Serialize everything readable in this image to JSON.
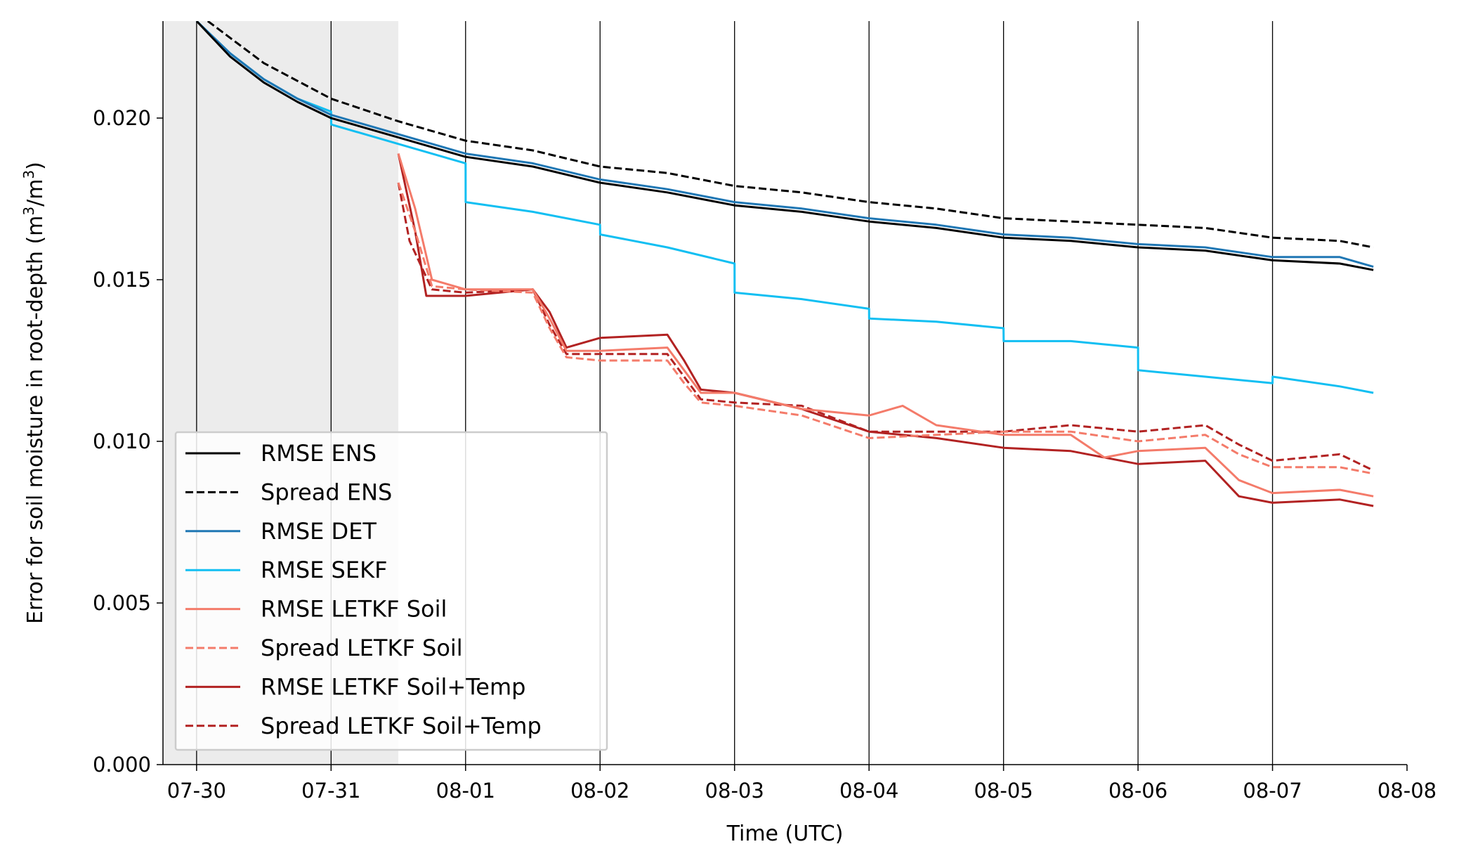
{
  "chart_data": {
    "type": "line",
    "xlabel": "Time (UTC)",
    "ylabel": "Error for soil moisture in root-depth (m",
    "ylabel_sup1": "3",
    "ylabel_mid": "/m",
    "ylabel_sup2": "3",
    "ylabel_end": ")",
    "xlim": [
      "2023-07-29T18:00",
      "2023-08-08T00:00"
    ],
    "ylim": [
      0,
      0.023
    ],
    "x_ticks": [
      "07-30",
      "07-31",
      "08-01",
      "08-02",
      "08-03",
      "08-04",
      "08-05",
      "08-06",
      "08-07",
      "08-08"
    ],
    "y_ticks": [
      "0.000",
      "0.005",
      "0.010",
      "0.015",
      "0.020"
    ],
    "vertical_gridlines_at": [
      "07-30",
      "07-31",
      "08-01",
      "08-02",
      "08-03",
      "08-04",
      "08-05",
      "08-06",
      "08-07"
    ],
    "shaded_region": {
      "from": "2023-07-29T18:00",
      "to": "2023-07-31T12:00",
      "color": "#ececec"
    },
    "legend_placement": "lower-left",
    "series": [
      {
        "name": "RMSE ENS",
        "color": "#000000",
        "dashed": false,
        "points": [
          [
            "2023-07-30T00:00",
            0.023
          ],
          [
            "2023-07-30T06:00",
            0.0219
          ],
          [
            "2023-07-30T12:00",
            0.0211
          ],
          [
            "2023-07-30T18:00",
            0.0205
          ],
          [
            "2023-07-31T00:00",
            0.02
          ],
          [
            "2023-07-31T12:00",
            0.0194
          ],
          [
            "2023-08-01T00:00",
            0.0188
          ],
          [
            "2023-08-01T12:00",
            0.0185
          ],
          [
            "2023-08-02T00:00",
            0.018
          ],
          [
            "2023-08-02T12:00",
            0.0177
          ],
          [
            "2023-08-03T00:00",
            0.0173
          ],
          [
            "2023-08-03T12:00",
            0.0171
          ],
          [
            "2023-08-04T00:00",
            0.0168
          ],
          [
            "2023-08-04T12:00",
            0.0166
          ],
          [
            "2023-08-05T00:00",
            0.0163
          ],
          [
            "2023-08-05T12:00",
            0.0162
          ],
          [
            "2023-08-06T00:00",
            0.016
          ],
          [
            "2023-08-06T12:00",
            0.0159
          ],
          [
            "2023-08-07T00:00",
            0.0156
          ],
          [
            "2023-08-07T12:00",
            0.0155
          ],
          [
            "2023-08-07T18:00",
            0.0153
          ]
        ]
      },
      {
        "name": "Spread ENS",
        "color": "#000000",
        "dashed": true,
        "points": [
          [
            "2023-07-30T02:00",
            0.023
          ],
          [
            "2023-07-30T12:00",
            0.0217
          ],
          [
            "2023-07-31T00:00",
            0.0206
          ],
          [
            "2023-07-31T12:00",
            0.0199
          ],
          [
            "2023-08-01T00:00",
            0.0193
          ],
          [
            "2023-08-01T12:00",
            0.019
          ],
          [
            "2023-08-02T00:00",
            0.0185
          ],
          [
            "2023-08-02T12:00",
            0.0183
          ],
          [
            "2023-08-03T00:00",
            0.0179
          ],
          [
            "2023-08-03T12:00",
            0.0177
          ],
          [
            "2023-08-04T00:00",
            0.0174
          ],
          [
            "2023-08-04T12:00",
            0.0172
          ],
          [
            "2023-08-05T00:00",
            0.0169
          ],
          [
            "2023-08-05T12:00",
            0.0168
          ],
          [
            "2023-08-06T00:00",
            0.0167
          ],
          [
            "2023-08-06T12:00",
            0.0166
          ],
          [
            "2023-08-07T00:00",
            0.0163
          ],
          [
            "2023-08-07T12:00",
            0.0162
          ],
          [
            "2023-08-07T18:00",
            0.016
          ]
        ]
      },
      {
        "name": "RMSE DET",
        "color": "#1f77b4",
        "dashed": false,
        "points": [
          [
            "2023-07-30T00:00",
            0.023
          ],
          [
            "2023-07-30T06:00",
            0.022
          ],
          [
            "2023-07-30T12:00",
            0.0212
          ],
          [
            "2023-07-30T18:00",
            0.0206
          ],
          [
            "2023-07-31T00:00",
            0.0201
          ],
          [
            "2023-07-31T12:00",
            0.0195
          ],
          [
            "2023-08-01T00:00",
            0.0189
          ],
          [
            "2023-08-01T12:00",
            0.0186
          ],
          [
            "2023-08-02T00:00",
            0.0181
          ],
          [
            "2023-08-02T12:00",
            0.0178
          ],
          [
            "2023-08-03T00:00",
            0.0174
          ],
          [
            "2023-08-03T12:00",
            0.0172
          ],
          [
            "2023-08-04T00:00",
            0.0169
          ],
          [
            "2023-08-04T12:00",
            0.0167
          ],
          [
            "2023-08-05T00:00",
            0.0164
          ],
          [
            "2023-08-05T12:00",
            0.0163
          ],
          [
            "2023-08-06T00:00",
            0.0161
          ],
          [
            "2023-08-06T12:00",
            0.016
          ],
          [
            "2023-08-07T00:00",
            0.0157
          ],
          [
            "2023-08-07T12:00",
            0.0157
          ],
          [
            "2023-08-07T18:00",
            0.0154
          ]
        ]
      },
      {
        "name": "RMSE SEKF",
        "color": "#12bff2",
        "dashed": false,
        "points": [
          [
            "2023-07-30T00:00",
            0.023
          ],
          [
            "2023-07-30T06:00",
            0.022
          ],
          [
            "2023-07-30T12:00",
            0.0212
          ],
          [
            "2023-07-30T18:00",
            0.0206
          ],
          [
            "2023-07-31T00:00",
            0.0202
          ],
          [
            "2023-07-31T00:01",
            0.0198
          ],
          [
            "2023-07-31T12:00",
            0.0192
          ],
          [
            "2023-08-01T00:00",
            0.0186
          ],
          [
            "2023-08-01T00:01",
            0.0174
          ],
          [
            "2023-08-01T12:00",
            0.0171
          ],
          [
            "2023-08-02T00:00",
            0.0167
          ],
          [
            "2023-08-02T00:01",
            0.0164
          ],
          [
            "2023-08-02T12:00",
            0.016
          ],
          [
            "2023-08-03T00:00",
            0.0155
          ],
          [
            "2023-08-03T00:01",
            0.0146
          ],
          [
            "2023-08-03T12:00",
            0.0144
          ],
          [
            "2023-08-04T00:00",
            0.0141
          ],
          [
            "2023-08-04T00:01",
            0.0138
          ],
          [
            "2023-08-04T12:00",
            0.0137
          ],
          [
            "2023-08-05T00:00",
            0.0135
          ],
          [
            "2023-08-05T00:01",
            0.0131
          ],
          [
            "2023-08-05T12:00",
            0.0131
          ],
          [
            "2023-08-06T00:00",
            0.0129
          ],
          [
            "2023-08-06T00:01",
            0.0122
          ],
          [
            "2023-08-06T12:00",
            0.012
          ],
          [
            "2023-08-07T00:00",
            0.0118
          ],
          [
            "2023-08-07T00:01",
            0.012
          ],
          [
            "2023-08-07T12:00",
            0.0117
          ],
          [
            "2023-08-07T18:00",
            0.0115
          ]
        ]
      },
      {
        "name": "RMSE LETKF Soil",
        "color": "#f47b6a",
        "dashed": false,
        "points": [
          [
            "2023-07-31T12:00",
            0.0189
          ],
          [
            "2023-07-31T15:00",
            0.0172
          ],
          [
            "2023-07-31T18:00",
            0.015
          ],
          [
            "2023-08-01T00:00",
            0.0147
          ],
          [
            "2023-08-01T12:00",
            0.0147
          ],
          [
            "2023-08-01T15:00",
            0.0138
          ],
          [
            "2023-08-01T18:00",
            0.0128
          ],
          [
            "2023-08-02T00:00",
            0.0128
          ],
          [
            "2023-08-02T12:00",
            0.0129
          ],
          [
            "2023-08-02T15:00",
            0.0122
          ],
          [
            "2023-08-02T18:00",
            0.0115
          ],
          [
            "2023-08-03T00:00",
            0.0115
          ],
          [
            "2023-08-03T12:00",
            0.011
          ],
          [
            "2023-08-04T00:00",
            0.0108
          ],
          [
            "2023-08-04T06:00",
            0.0111
          ],
          [
            "2023-08-04T12:00",
            0.0105
          ],
          [
            "2023-08-05T00:00",
            0.0102
          ],
          [
            "2023-08-05T12:00",
            0.0102
          ],
          [
            "2023-08-05T18:00",
            0.0095
          ],
          [
            "2023-08-06T00:00",
            0.0097
          ],
          [
            "2023-08-06T12:00",
            0.0098
          ],
          [
            "2023-08-06T18:00",
            0.0088
          ],
          [
            "2023-08-07T00:00",
            0.0084
          ],
          [
            "2023-08-07T12:00",
            0.0085
          ],
          [
            "2023-08-07T18:00",
            0.0083
          ]
        ]
      },
      {
        "name": "Spread LETKF Soil",
        "color": "#f47b6a",
        "dashed": true,
        "points": [
          [
            "2023-07-31T12:00",
            0.018
          ],
          [
            "2023-07-31T15:00",
            0.0165
          ],
          [
            "2023-07-31T18:00",
            0.0148
          ],
          [
            "2023-08-01T00:00",
            0.0147
          ],
          [
            "2023-08-01T12:00",
            0.0146
          ],
          [
            "2023-08-01T15:00",
            0.0135
          ],
          [
            "2023-08-01T18:00",
            0.0126
          ],
          [
            "2023-08-02T00:00",
            0.0125
          ],
          [
            "2023-08-02T12:00",
            0.0125
          ],
          [
            "2023-08-02T15:00",
            0.0118
          ],
          [
            "2023-08-02T18:00",
            0.0112
          ],
          [
            "2023-08-03T00:00",
            0.0111
          ],
          [
            "2023-08-03T12:00",
            0.0108
          ],
          [
            "2023-08-04T00:00",
            0.0101
          ],
          [
            "2023-08-04T12:00",
            0.0102
          ],
          [
            "2023-08-05T00:00",
            0.0103
          ],
          [
            "2023-08-05T12:00",
            0.0103
          ],
          [
            "2023-08-06T00:00",
            0.01
          ],
          [
            "2023-08-06T12:00",
            0.0102
          ],
          [
            "2023-08-06T18:00",
            0.0096
          ],
          [
            "2023-08-07T00:00",
            0.0092
          ],
          [
            "2023-08-07T12:00",
            0.0092
          ],
          [
            "2023-08-07T18:00",
            0.009
          ]
        ]
      },
      {
        "name": "RMSE LETKF Soil+Temp",
        "color": "#b22222",
        "dashed": false,
        "points": [
          [
            "2023-07-31T12:00",
            0.0189
          ],
          [
            "2023-07-31T15:00",
            0.0165
          ],
          [
            "2023-07-31T17:00",
            0.0145
          ],
          [
            "2023-08-01T00:00",
            0.0145
          ],
          [
            "2023-08-01T12:00",
            0.0147
          ],
          [
            "2023-08-01T15:00",
            0.014
          ],
          [
            "2023-08-01T18:00",
            0.0129
          ],
          [
            "2023-08-02T00:00",
            0.0132
          ],
          [
            "2023-08-02T12:00",
            0.0133
          ],
          [
            "2023-08-02T15:00",
            0.0125
          ],
          [
            "2023-08-02T18:00",
            0.0116
          ],
          [
            "2023-08-03T00:00",
            0.0115
          ],
          [
            "2023-08-03T12:00",
            0.011
          ],
          [
            "2023-08-04T00:00",
            0.0103
          ],
          [
            "2023-08-04T12:00",
            0.0101
          ],
          [
            "2023-08-05T00:00",
            0.0098
          ],
          [
            "2023-08-05T12:00",
            0.0097
          ],
          [
            "2023-08-06T00:00",
            0.0093
          ],
          [
            "2023-08-06T12:00",
            0.0094
          ],
          [
            "2023-08-06T18:00",
            0.0083
          ],
          [
            "2023-08-07T00:00",
            0.0081
          ],
          [
            "2023-08-07T12:00",
            0.0082
          ],
          [
            "2023-08-07T18:00",
            0.008
          ]
        ]
      },
      {
        "name": "Spread LETKF Soil+Temp",
        "color": "#b22222",
        "dashed": true,
        "points": [
          [
            "2023-07-31T12:00",
            0.018
          ],
          [
            "2023-07-31T14:00",
            0.0162
          ],
          [
            "2023-07-31T18:00",
            0.0147
          ],
          [
            "2023-08-01T00:00",
            0.0146
          ],
          [
            "2023-08-01T12:00",
            0.0147
          ],
          [
            "2023-08-01T15:00",
            0.0136
          ],
          [
            "2023-08-01T18:00",
            0.0127
          ],
          [
            "2023-08-02T00:00",
            0.0127
          ],
          [
            "2023-08-02T12:00",
            0.0127
          ],
          [
            "2023-08-02T15:00",
            0.012
          ],
          [
            "2023-08-02T18:00",
            0.0113
          ],
          [
            "2023-08-03T00:00",
            0.0112
          ],
          [
            "2023-08-03T12:00",
            0.0111
          ],
          [
            "2023-08-04T00:00",
            0.0103
          ],
          [
            "2023-08-04T12:00",
            0.0103
          ],
          [
            "2023-08-05T00:00",
            0.0103
          ],
          [
            "2023-08-05T12:00",
            0.0105
          ],
          [
            "2023-08-06T00:00",
            0.0103
          ],
          [
            "2023-08-06T12:00",
            0.0105
          ],
          [
            "2023-08-06T18:00",
            0.0099
          ],
          [
            "2023-08-07T00:00",
            0.0094
          ],
          [
            "2023-08-07T12:00",
            0.0096
          ],
          [
            "2023-08-07T18:00",
            0.0091
          ]
        ]
      }
    ]
  }
}
